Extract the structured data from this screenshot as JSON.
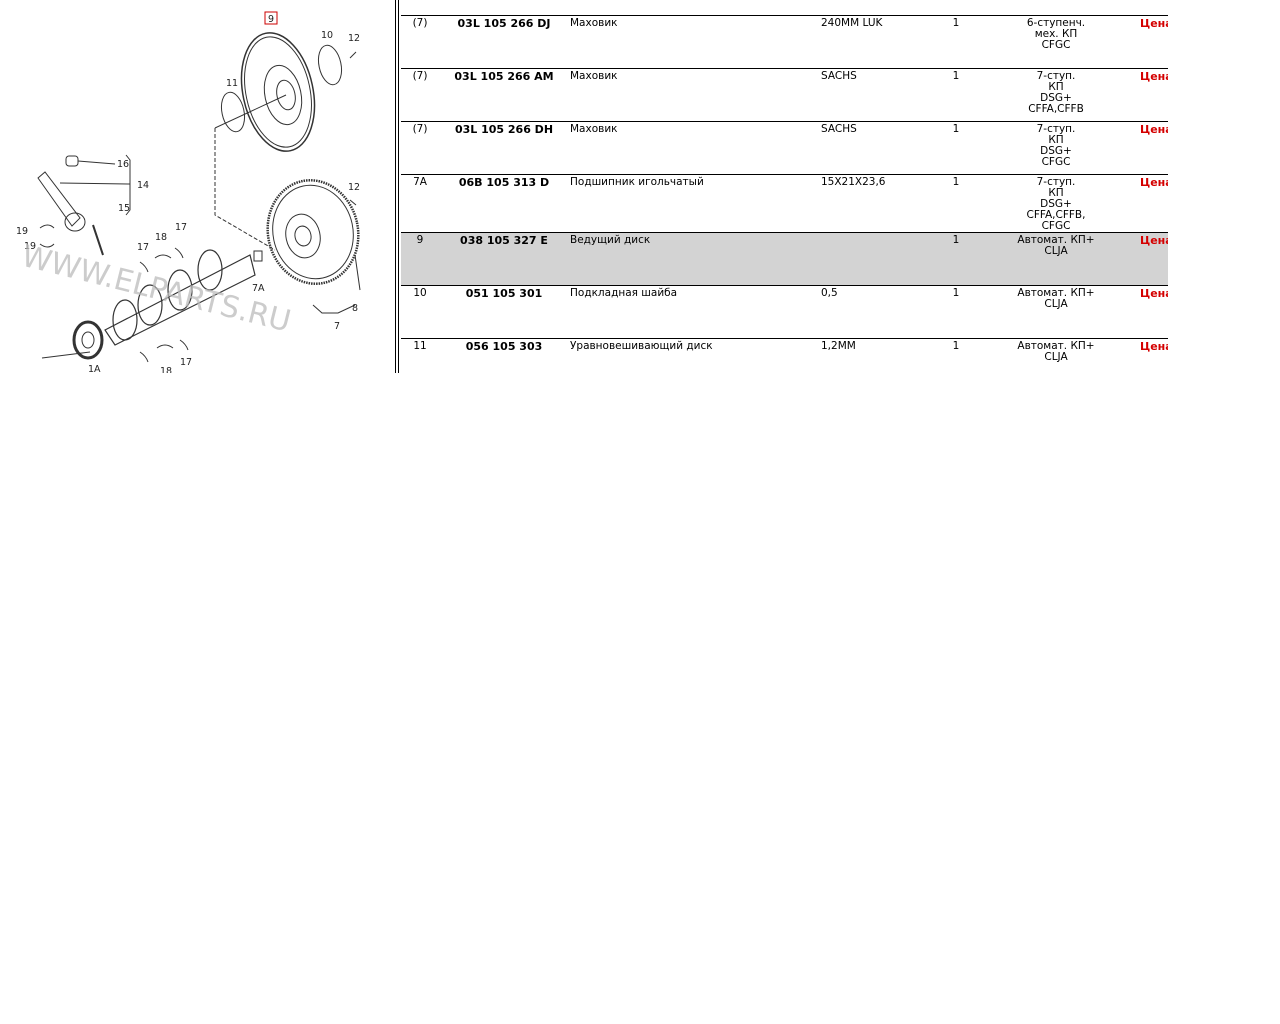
{
  "diagram": {
    "watermark": "WWW.ELPARTS.RU",
    "highlight_color": "#cc0000",
    "selected_callout": "9",
    "callouts": [
      "9",
      "10",
      "12",
      "11",
      "16",
      "14",
      "15",
      "19",
      "19",
      "17",
      "18",
      "17",
      "12",
      "7A",
      "8",
      "7",
      "1A",
      "18",
      "17"
    ]
  },
  "table": {
    "price_color": "#d40000",
    "selected_row_color": "#d3d3d3",
    "rows": [
      {
        "num": "(7)",
        "part": "03L 105 266 DJ",
        "name": "Маховик",
        "note": "240MM LUK",
        "qty": "1",
        "applicability": "6-ступенч.\nмех. КП\nCFGC",
        "price": "Цена"
      },
      {
        "num": "(7)",
        "part": "03L 105 266 AM",
        "name": "Маховик",
        "note": "SACHS",
        "qty": "1",
        "applicability": "7-ступ.\nКП\nDSG+\nCFFA,CFFB",
        "price": "Цена"
      },
      {
        "num": "(7)",
        "part": "03L 105 266 DH",
        "name": "Маховик",
        "note": "SACHS",
        "qty": "1",
        "applicability": "7-ступ.\nКП\nDSG+\nCFGC",
        "price": "Цена"
      },
      {
        "num": "7A",
        "part": "06B 105 313 D",
        "name": "Подшипник игольчатый",
        "note": "15X21X23,6",
        "qty": "1",
        "applicability": "7-ступ.\nКП\nDSG+\nCFFA,CFFB,\nCFGC",
        "price": "Цена"
      },
      {
        "num": "9",
        "part": "038 105 327 E",
        "name": "Ведущий диск",
        "note": "",
        "qty": "1",
        "applicability": "Автомат. КП+\nCLJA",
        "price": "Цена",
        "selected": true
      },
      {
        "num": "10",
        "part": "051 105 301",
        "name": "Подкладная шайба",
        "note": "0,5",
        "qty": "1",
        "applicability": "Автомат. КП+\nCLJA",
        "price": "Цена"
      },
      {
        "num": "11",
        "part": "056 105 303",
        "name": "Уравновешивающий диск",
        "note": "1,2MM",
        "qty": "1",
        "applicability": "Автомат. КП+\nCLJA",
        "price": "Цена"
      }
    ]
  }
}
